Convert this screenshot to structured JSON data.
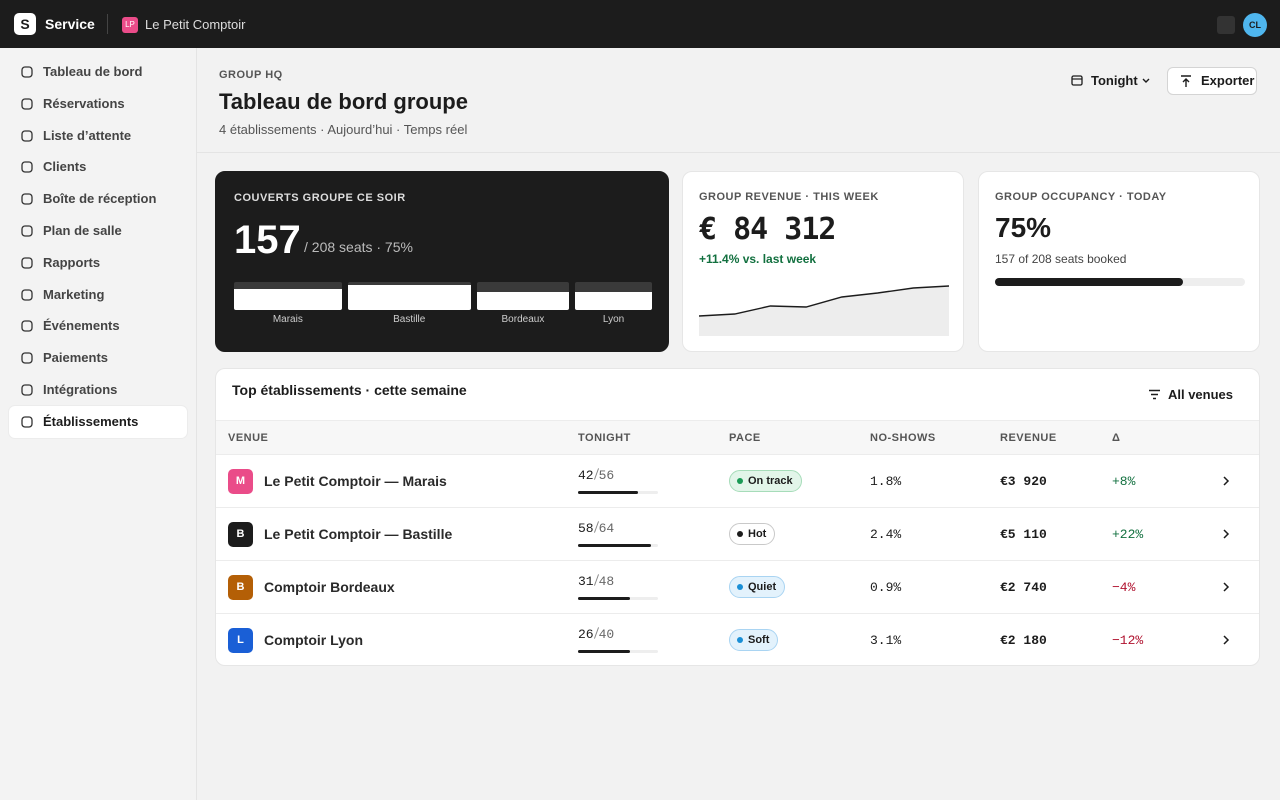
{
  "topbar": {
    "logo": "S",
    "app": "Service",
    "venue_badge": "LP",
    "venue": "Le Petit Comptoir",
    "avatar": "CL"
  },
  "sidebar": {
    "items": [
      {
        "label": "Tableau de bord",
        "active": false
      },
      {
        "label": "Réservations",
        "active": false
      },
      {
        "label": "Liste d’attente",
        "active": false
      },
      {
        "label": "Clients",
        "active": false
      },
      {
        "label": "Boîte de réception",
        "active": false
      },
      {
        "label": "Plan de salle",
        "active": false
      },
      {
        "label": "Rapports",
        "active": false
      },
      {
        "label": "Marketing",
        "active": false
      },
      {
        "label": "Événements",
        "active": false
      },
      {
        "label": "Paiements",
        "active": false
      },
      {
        "label": "Intégrations",
        "active": false
      },
      {
        "label": "Établissements",
        "active": true
      }
    ]
  },
  "header": {
    "eyebrow": "GROUP HQ",
    "title": "Tableau de bord groupe",
    "subtitle": "4 établissements · Aujourd’hui · Temps réel",
    "period": "Tonight",
    "export": "Exporter"
  },
  "covers": {
    "label": "COUVERTS GROUPE CE SOIR",
    "value": 157,
    "detail": "/ 208 seats · 75%",
    "bars": [
      "Marais",
      "Bastille",
      "Bordeaux",
      "Lyon"
    ]
  },
  "revenue": {
    "label": "GROUP REVENUE · THIS WEEK",
    "value": 84312,
    "value_label": "€ 84 312",
    "change": "+11.4% vs. last week",
    "sparkline": [
      10,
      11,
      15,
      14.5,
      19.5,
      21.5,
      24,
      25
    ],
    "ylim": [
      0,
      30
    ]
  },
  "occupancy": {
    "label": "GROUP OCCUPANCY · TODAY",
    "value": 75,
    "value_label": "75%",
    "detail": "157 of 208 seats booked"
  },
  "table": {
    "title": "Top établissements · cette semaine",
    "filter": "All venues",
    "columns": [
      "VENUE",
      "TONIGHT",
      "PACE",
      "NO-SHOWS",
      "REVENUE",
      "Δ"
    ],
    "rows": [
      {
        "badge": "M",
        "badge_color": "#ea4c89",
        "name": "Le Petit Comptoir — Marais",
        "covers": 42,
        "seats": 56,
        "pace": {
          "text": "On track",
          "dot": "#1a9a55",
          "bg": "#e2f5e9",
          "border": "#a6dcb9"
        },
        "no_shows": "1.8%",
        "revenue": "€3 920",
        "delta": "+8%",
        "delta_color": "#12703f"
      },
      {
        "badge": "B",
        "badge_color": "#1c1c1c",
        "name": "Le Petit Comptoir — Bastille",
        "covers": 58,
        "seats": 64,
        "pace": {
          "text": "Hot",
          "dot": "#1c1c1c",
          "bg": "#ffffff",
          "border": "#c9c9c9"
        },
        "no_shows": "2.4%",
        "revenue": "€5 110",
        "delta": "+22%",
        "delta_color": "#12703f"
      },
      {
        "badge": "B",
        "badge_color": "#b45f06",
        "name": "Comptoir Bordeaux",
        "covers": 31,
        "seats": 48,
        "pace": {
          "text": "Quiet",
          "dot": "#1a8fd6",
          "bg": "#e3f2fc",
          "border": "#a9d4f2"
        },
        "no_shows": "0.9%",
        "revenue": "€2 740",
        "delta": "−4%",
        "delta_color": "#b0122f"
      },
      {
        "badge": "L",
        "badge_color": "#1a5fd6",
        "name": "Comptoir Lyon",
        "covers": 26,
        "seats": 40,
        "pace": {
          "text": "Soft",
          "dot": "#1a8fd6",
          "bg": "#e3f2fc",
          "border": "#a9d4f2"
        },
        "no_shows": "3.1%",
        "revenue": "€2 180",
        "delta": "−12%",
        "delta_color": "#b0122f"
      }
    ]
  }
}
